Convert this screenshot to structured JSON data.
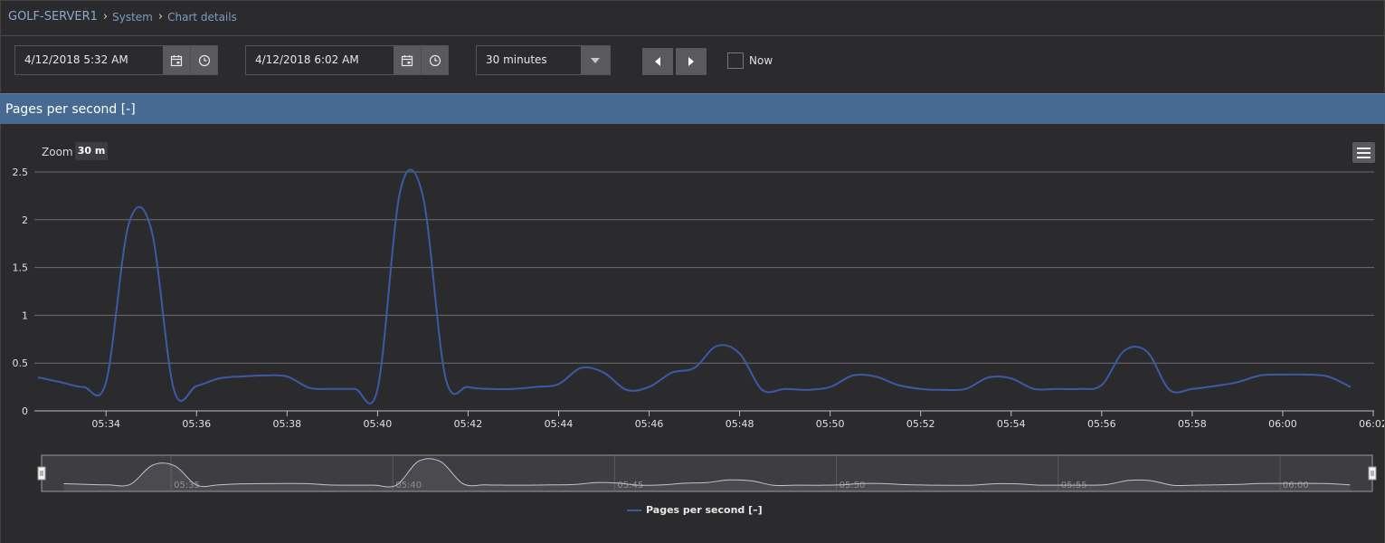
{
  "breadcrumb": {
    "server": "GOLF-SERVER1",
    "section": "System",
    "page": "Chart details"
  },
  "toolbar": {
    "start": "4/12/2018 5:32 AM",
    "end": "4/12/2018 6:02 AM",
    "range": "30 minutes",
    "now_label": "Now",
    "now_checked": false
  },
  "panel": {
    "title": "Pages per second [-]"
  },
  "chart": {
    "zoom_label": "Zoom",
    "zoom_value": "30 m",
    "legend": "Pages per second [–]"
  },
  "colors": {
    "series": "#3b5ba5",
    "panel_header": "#466a92",
    "background": "#2b2b2e"
  },
  "icons": {
    "calendar": "calendar-icon",
    "clock": "clock-icon",
    "dropdown": "chevron-down-icon",
    "prev": "caret-left-icon",
    "next": "caret-right-icon",
    "menu": "hamburger-menu-icon"
  },
  "chart_data": {
    "type": "line",
    "series": [
      {
        "name": "Pages per second [–]",
        "x": [
          "05:32:30",
          "05:33:00",
          "05:33:30",
          "05:34:00",
          "05:34:30",
          "05:35:00",
          "05:35:30",
          "05:36:00",
          "05:36:30",
          "05:37:00",
          "05:37:30",
          "05:38:00",
          "05:38:30",
          "05:39:00",
          "05:39:30",
          "05:40:00",
          "05:40:30",
          "05:41:00",
          "05:41:30",
          "05:42:00",
          "05:42:30",
          "05:43:00",
          "05:43:30",
          "05:44:00",
          "05:44:30",
          "05:45:00",
          "05:45:30",
          "05:46:00",
          "05:46:30",
          "05:47:00",
          "05:47:30",
          "05:48:00",
          "05:48:30",
          "05:49:00",
          "05:49:30",
          "05:50:00",
          "05:50:30",
          "05:51:00",
          "05:51:30",
          "05:52:00",
          "05:52:30",
          "05:53:00",
          "05:53:30",
          "05:54:00",
          "05:54:30",
          "05:55:00",
          "05:55:30",
          "05:56:00",
          "05:56:30",
          "05:57:00",
          "05:57:30",
          "05:58:00",
          "05:58:30",
          "05:59:00",
          "05:59:30",
          "06:00:00",
          "06:00:30",
          "06:01:00",
          "06:01:30"
        ],
        "values": [
          0.35,
          0.3,
          0.25,
          0.3,
          1.95,
          1.9,
          0.22,
          0.26,
          0.34,
          0.36,
          0.37,
          0.36,
          0.24,
          0.23,
          0.23,
          0.23,
          2.3,
          2.25,
          0.35,
          0.25,
          0.23,
          0.23,
          0.25,
          0.28,
          0.45,
          0.4,
          0.22,
          0.25,
          0.4,
          0.45,
          0.68,
          0.6,
          0.22,
          0.23,
          0.22,
          0.25,
          0.37,
          0.36,
          0.27,
          0.23,
          0.22,
          0.23,
          0.35,
          0.34,
          0.23,
          0.23,
          0.23,
          0.27,
          0.63,
          0.62,
          0.22,
          0.23,
          0.26,
          0.3,
          0.37,
          0.38,
          0.38,
          0.36,
          0.25
        ]
      }
    ],
    "x_ticks": [
      "05:34",
      "05:36",
      "05:38",
      "05:40",
      "05:42",
      "05:44",
      "05:46",
      "05:48",
      "05:50",
      "05:52",
      "05:54",
      "05:56",
      "05:58",
      "06:00",
      "06:02"
    ],
    "y_ticks": [
      "0",
      "0.5",
      "1",
      "1.5",
      "2",
      "2.5"
    ],
    "ylim": [
      0,
      2.5
    ],
    "navigator_ticks": [
      "05:35",
      "05:40",
      "05:45",
      "05:50",
      "05:55",
      "06:00"
    ],
    "grid": true,
    "legend_position": "bottom-center"
  }
}
